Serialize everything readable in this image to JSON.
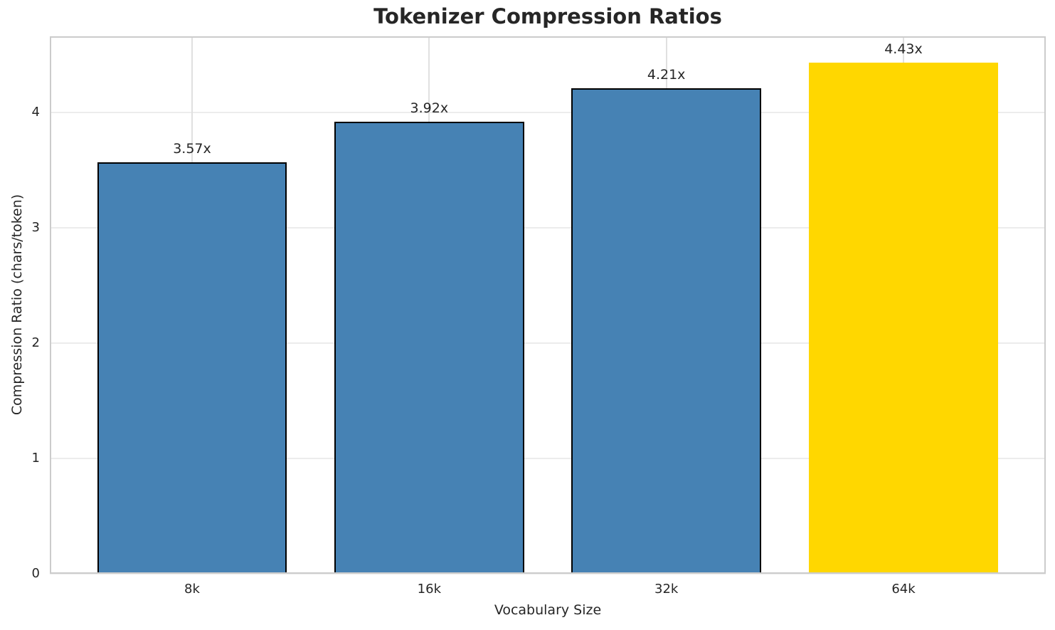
{
  "chart_data": {
    "type": "bar",
    "title": "Tokenizer Compression Ratios",
    "xlabel": "Vocabulary Size",
    "ylabel": "Compression Ratio (chars/token)",
    "categories": [
      "8k",
      "16k",
      "32k",
      "64k"
    ],
    "values": [
      3.57,
      3.92,
      4.21,
      4.43
    ],
    "bar_labels": [
      "3.57x",
      "3.92x",
      "4.21x",
      "4.43x"
    ],
    "yticks": [
      0,
      1,
      2,
      3,
      4
    ],
    "ylim": [
      0,
      4.66
    ],
    "xlim": [
      -0.6,
      3.6
    ],
    "bar_width": 0.8,
    "grid": true,
    "legend": false,
    "bar_colors": [
      "#4682B4",
      "#4682B4",
      "#4682B4",
      "#FFD700"
    ],
    "bar_edge_color": "#000000",
    "bar_edge_widths": [
      2,
      2,
      2,
      0
    ],
    "colors": {
      "background": "#ffffff",
      "grid": "#ececec",
      "spine": "#cccccc",
      "text": "#262626",
      "bar_default": "#4682B4",
      "bar_highlight": "#FFD700"
    }
  }
}
